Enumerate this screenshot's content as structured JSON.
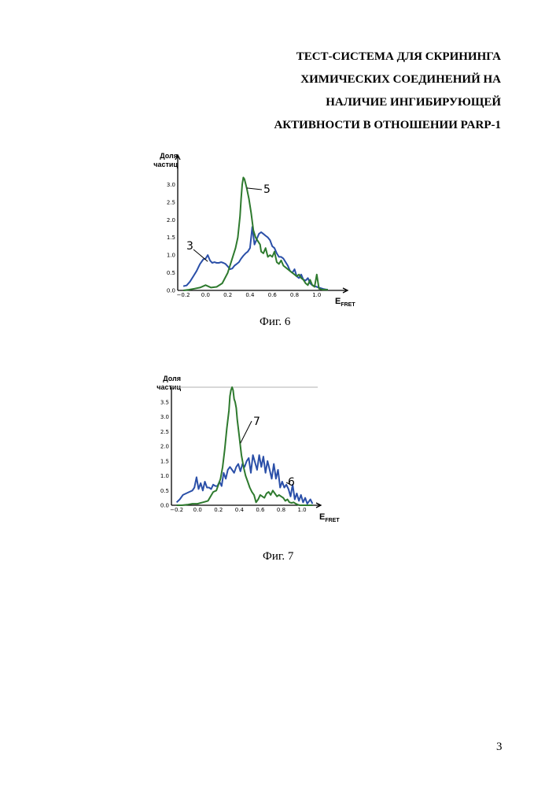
{
  "title_lines": [
    "ТЕСТ-СИСТЕМА ДЛЯ СКРИНИНГА",
    "ХИМИЧЕСКИХ СОЕДИНЕНИЙ НА",
    "НАЛИЧИЕ ИНГИБИРУЮЩЕЙ",
    "АКТИВНОСТИ В ОТНОШЕНИИ PARP-1"
  ],
  "page_number": "3",
  "colors": {
    "blue": "#2a4fa8",
    "green": "#2e7a2e"
  },
  "figures": [
    {
      "caption": "Фиг. 6",
      "ylabel_lines": [
        "Доля",
        "частиц"
      ],
      "xlabel_main": "E",
      "xlabel_sub": "FRET",
      "chart_data": {
        "type": "line",
        "xlim": [
          -0.25,
          1.15
        ],
        "ylim": [
          0,
          3.5
        ],
        "xticks": [
          -0.2,
          0.0,
          0.2,
          0.4,
          0.6,
          0.8,
          1.0
        ],
        "xtick_labels": [
          "−0.2",
          "0.0",
          "0.2",
          "0.4",
          "0.6",
          "0.8",
          "1.0"
        ],
        "yticks": [
          0.0,
          0.5,
          1.0,
          1.5,
          2.0,
          2.5,
          3.0
        ],
        "ytick_labels": [
          "0.0",
          "0.5",
          "1.0",
          "1.5",
          "2.0",
          "2.5",
          "3.0"
        ],
        "series": [
          {
            "name": "3",
            "color": "blue",
            "x": [
              -0.2,
              -0.17,
              -0.14,
              -0.11,
              -0.08,
              -0.05,
              -0.02,
              0.0,
              0.02,
              0.04,
              0.06,
              0.08,
              0.1,
              0.12,
              0.14,
              0.16,
              0.18,
              0.2,
              0.22,
              0.24,
              0.26,
              0.28,
              0.3,
              0.32,
              0.34,
              0.36,
              0.38,
              0.4,
              0.42,
              0.44,
              0.46,
              0.48,
              0.5,
              0.52,
              0.54,
              0.56,
              0.58,
              0.6,
              0.62,
              0.64,
              0.66,
              0.68,
              0.7,
              0.72,
              0.74,
              0.76,
              0.78,
              0.8,
              0.82,
              0.84,
              0.86,
              0.88,
              0.9,
              0.92,
              0.94,
              0.96,
              0.98,
              1.0,
              1.02,
              1.04,
              1.06,
              1.08,
              1.1
            ],
            "y": [
              0.12,
              0.14,
              0.25,
              0.4,
              0.55,
              0.75,
              0.88,
              0.9,
              1.0,
              0.85,
              0.78,
              0.8,
              0.78,
              0.78,
              0.8,
              0.78,
              0.75,
              0.68,
              0.6,
              0.62,
              0.7,
              0.75,
              0.8,
              0.9,
              0.98,
              1.05,
              1.1,
              1.2,
              1.8,
              1.3,
              1.45,
              1.6,
              1.65,
              1.6,
              1.55,
              1.5,
              1.42,
              1.25,
              1.2,
              1.05,
              0.95,
              0.95,
              0.9,
              0.8,
              0.7,
              0.55,
              0.5,
              0.6,
              0.4,
              0.35,
              0.45,
              0.3,
              0.28,
              0.35,
              0.2,
              0.15,
              0.12,
              0.1,
              0.08,
              0.06,
              0.04,
              0.03,
              0.02
            ]
          },
          {
            "name": "5",
            "color": "green",
            "x": [
              -0.2,
              -0.15,
              -0.1,
              -0.05,
              0.0,
              0.05,
              0.1,
              0.15,
              0.2,
              0.25,
              0.27,
              0.29,
              0.31,
              0.32,
              0.33,
              0.34,
              0.35,
              0.37,
              0.39,
              0.41,
              0.43,
              0.45,
              0.47,
              0.49,
              0.5,
              0.52,
              0.54,
              0.56,
              0.58,
              0.6,
              0.62,
              0.64,
              0.66,
              0.68,
              0.7,
              0.72,
              0.74,
              0.76,
              0.78,
              0.8,
              0.82,
              0.84,
              0.86,
              0.88,
              0.9,
              0.92,
              0.94,
              0.96,
              0.98,
              1.0,
              1.02,
              1.05,
              1.1
            ],
            "y": [
              0.0,
              0.02,
              0.05,
              0.08,
              0.15,
              0.08,
              0.1,
              0.2,
              0.5,
              1.0,
              1.2,
              1.5,
              2.1,
              2.6,
              3.0,
              3.2,
              3.15,
              2.9,
              2.6,
              2.2,
              1.7,
              1.5,
              1.4,
              1.3,
              1.1,
              1.05,
              1.2,
              0.95,
              1.0,
              0.95,
              1.1,
              0.8,
              0.75,
              0.85,
              0.7,
              0.65,
              0.6,
              0.55,
              0.5,
              0.45,
              0.4,
              0.45,
              0.35,
              0.3,
              0.2,
              0.15,
              0.3,
              0.15,
              0.1,
              0.45,
              0.05,
              0.02,
              0.02
            ]
          }
        ]
      }
    },
    {
      "caption": "Фиг. 7",
      "ylabel_lines": [
        "Доля",
        "частиц"
      ],
      "xlabel_main": "E",
      "xlabel_sub": "FRET",
      "chart_data": {
        "type": "line",
        "xlim": [
          -0.25,
          1.15
        ],
        "ylim": [
          0,
          4.0
        ],
        "xticks": [
          -0.2,
          0.0,
          0.2,
          0.4,
          0.6,
          0.8,
          1.0
        ],
        "xtick_labels": [
          "−0.2",
          "0.0",
          "0.2",
          "0.4",
          "0.6",
          "0.8",
          "1.0"
        ],
        "yticks": [
          0.0,
          0.5,
          1.0,
          1.5,
          2.0,
          2.5,
          3.0,
          3.5
        ],
        "ytick_labels": [
          "0.0",
          "0.5",
          "1.0",
          "1.5",
          "2.0",
          "2.5",
          "3.0",
          "3.5"
        ],
        "series": [
          {
            "name": "6",
            "color": "blue",
            "x": [
              -0.2,
              -0.17,
              -0.14,
              -0.11,
              -0.08,
              -0.05,
              -0.03,
              -0.01,
              0.01,
              0.03,
              0.05,
              0.07,
              0.09,
              0.11,
              0.13,
              0.15,
              0.17,
              0.19,
              0.21,
              0.23,
              0.25,
              0.27,
              0.29,
              0.31,
              0.33,
              0.35,
              0.37,
              0.39,
              0.41,
              0.43,
              0.45,
              0.47,
              0.49,
              0.51,
              0.53,
              0.55,
              0.57,
              0.59,
              0.61,
              0.63,
              0.65,
              0.67,
              0.69,
              0.71,
              0.73,
              0.75,
              0.77,
              0.79,
              0.81,
              0.83,
              0.85,
              0.87,
              0.89,
              0.91,
              0.93,
              0.95,
              0.97,
              0.99,
              1.01,
              1.03,
              1.05,
              1.08,
              1.1
            ],
            "y": [
              0.1,
              0.2,
              0.35,
              0.4,
              0.45,
              0.5,
              0.6,
              0.95,
              0.55,
              0.75,
              0.5,
              0.8,
              0.6,
              0.6,
              0.55,
              0.7,
              0.65,
              0.65,
              0.8,
              0.65,
              1.1,
              0.9,
              1.2,
              1.3,
              1.2,
              1.1,
              1.3,
              1.4,
              1.15,
              1.4,
              1.3,
              1.5,
              1.6,
              1.1,
              1.7,
              1.45,
              1.2,
              1.7,
              1.3,
              1.65,
              1.1,
              1.5,
              1.2,
              0.9,
              1.4,
              0.9,
              1.2,
              0.6,
              0.8,
              0.6,
              0.7,
              0.55,
              0.3,
              0.7,
              0.2,
              0.4,
              0.15,
              0.35,
              0.1,
              0.25,
              0.05,
              0.2,
              0.05
            ]
          },
          {
            "name": "7",
            "color": "green",
            "x": [
              -0.2,
              -0.15,
              -0.1,
              -0.05,
              0.0,
              0.05,
              0.1,
              0.15,
              0.18,
              0.2,
              0.22,
              0.24,
              0.26,
              0.28,
              0.3,
              0.31,
              0.32,
              0.33,
              0.34,
              0.35,
              0.36,
              0.37,
              0.38,
              0.4,
              0.42,
              0.44,
              0.46,
              0.48,
              0.5,
              0.52,
              0.54,
              0.56,
              0.58,
              0.6,
              0.62,
              0.64,
              0.66,
              0.68,
              0.7,
              0.72,
              0.74,
              0.76,
              0.78,
              0.8,
              0.82,
              0.84,
              0.86,
              0.88,
              0.9,
              0.92,
              0.94,
              0.96,
              0.98,
              1.0,
              1.05,
              1.1
            ],
            "y": [
              0.0,
              0.0,
              0.02,
              0.05,
              0.05,
              0.1,
              0.15,
              0.45,
              0.5,
              0.7,
              0.9,
              1.3,
              1.9,
              2.6,
              3.2,
              3.7,
              3.9,
              4.0,
              3.9,
              3.6,
              3.5,
              3.3,
              2.9,
              2.3,
              1.7,
              1.3,
              1.0,
              0.8,
              0.6,
              0.45,
              0.35,
              0.1,
              0.2,
              0.35,
              0.3,
              0.25,
              0.4,
              0.45,
              0.35,
              0.5,
              0.4,
              0.3,
              0.35,
              0.3,
              0.25,
              0.15,
              0.2,
              0.1,
              0.08,
              0.1,
              0.05,
              0.02,
              0.0,
              0.0,
              0.0,
              0.0
            ]
          }
        ]
      }
    }
  ]
}
